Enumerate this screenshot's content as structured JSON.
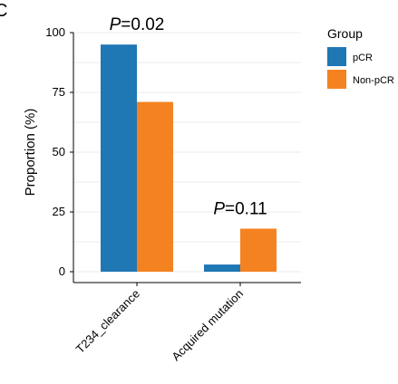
{
  "panel_label": "C",
  "chart_data": {
    "type": "bar",
    "categories": [
      "T234_clearance",
      "Acquired mutation"
    ],
    "series": [
      {
        "name": "pCR",
        "values": [
          95,
          3
        ],
        "color": "#1f77b4"
      },
      {
        "name": "Non-pCR",
        "values": [
          71,
          18
        ],
        "color": "#f58220"
      }
    ],
    "xlabel": "",
    "ylabel": "Proportion (%)",
    "ylim": [
      0,
      100
    ],
    "yticks": [
      0,
      25,
      50,
      75,
      100
    ],
    "grid": true,
    "legend": {
      "title": "Group",
      "placement": "right"
    },
    "annotations": [
      {
        "category": "T234_clearance",
        "italic": "P",
        "text": "=0.02"
      },
      {
        "category": "Acquired mutation",
        "italic": "P",
        "text": "=0.11"
      }
    ]
  }
}
